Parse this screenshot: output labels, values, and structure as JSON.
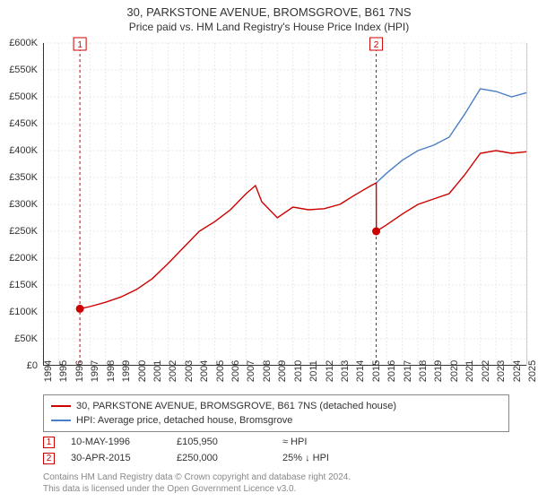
{
  "title": "30, PARKSTONE AVENUE, BROMSGROVE, B61 7NS",
  "subtitle": "Price paid vs. HM Land Registry's House Price Index (HPI)",
  "chart": {
    "type": "line",
    "x_domain_years": [
      1994,
      2025
    ],
    "ylim": [
      0,
      600000
    ],
    "ytick_step": 50000,
    "yticks": [
      "£0",
      "£50K",
      "£100K",
      "£150K",
      "£200K",
      "£250K",
      "£300K",
      "£350K",
      "£400K",
      "£450K",
      "£500K",
      "£550K",
      "£600K"
    ],
    "xticks_years": [
      1994,
      1995,
      1996,
      1997,
      1998,
      1999,
      2000,
      2001,
      2002,
      2003,
      2004,
      2005,
      2006,
      2007,
      2008,
      2009,
      2010,
      2011,
      2012,
      2013,
      2014,
      2015,
      2016,
      2017,
      2018,
      2019,
      2020,
      2021,
      2022,
      2023,
      2024,
      2025
    ],
    "grid_color": "#e8e8e8",
    "grid_dash": "2,2",
    "axis_color": "#333333",
    "background_color": "#ffffff",
    "series1_color": "#cc0000",
    "series2_color": "#4a7ec9",
    "line_width": 1.4,
    "marker_vline_color": "#cc0000",
    "marker_vline_dash": "3,3",
    "markers": [
      {
        "n": "1",
        "year": 1996.36,
        "value": 105950,
        "date": "10-MAY-1996",
        "price": "£105,950",
        "pct": "≈ HPI"
      },
      {
        "n": "2",
        "year": 2015.33,
        "value": 250000,
        "date": "30-APR-2015",
        "price": "£250,000",
        "pct": "25% ↓ HPI"
      }
    ],
    "series1_label": "30, PARKSTONE AVENUE, BROMSGROVE, B61 7NS (detached house)",
    "series2_label": "HPI: Average price, detached house, Bromsgrove",
    "series1_points": [
      [
        1996.36,
        105950
      ],
      [
        1997,
        110000
      ],
      [
        1998,
        118000
      ],
      [
        1999,
        128000
      ],
      [
        2000,
        142000
      ],
      [
        2001,
        162000
      ],
      [
        2002,
        190000
      ],
      [
        2003,
        220000
      ],
      [
        2004,
        250000
      ],
      [
        2005,
        268000
      ],
      [
        2006,
        290000
      ],
      [
        2007,
        320000
      ],
      [
        2007.6,
        335000
      ],
      [
        2008,
        305000
      ],
      [
        2009,
        275000
      ],
      [
        2010,
        295000
      ],
      [
        2011,
        290000
      ],
      [
        2012,
        292000
      ],
      [
        2013,
        300000
      ],
      [
        2014,
        318000
      ],
      [
        2015,
        335000
      ],
      [
        2015.33,
        340000
      ],
      [
        2015.34,
        250000
      ],
      [
        2016,
        262000
      ],
      [
        2017,
        282000
      ],
      [
        2018,
        300000
      ],
      [
        2019,
        310000
      ],
      [
        2020,
        320000
      ],
      [
        2021,
        355000
      ],
      [
        2022,
        395000
      ],
      [
        2023,
        400000
      ],
      [
        2024,
        395000
      ],
      [
        2025,
        398000
      ]
    ],
    "series2_points": [
      [
        2015.33,
        340000
      ],
      [
        2016,
        358000
      ],
      [
        2017,
        382000
      ],
      [
        2018,
        400000
      ],
      [
        2019,
        410000
      ],
      [
        2020,
        425000
      ],
      [
        2021,
        468000
      ],
      [
        2022,
        515000
      ],
      [
        2023,
        510000
      ],
      [
        2024,
        500000
      ],
      [
        2025,
        508000
      ]
    ]
  },
  "footer_lines": [
    "Contains HM Land Registry data © Crown copyright and database right 2024.",
    "This data is licensed under the Open Government Licence v3.0."
  ]
}
